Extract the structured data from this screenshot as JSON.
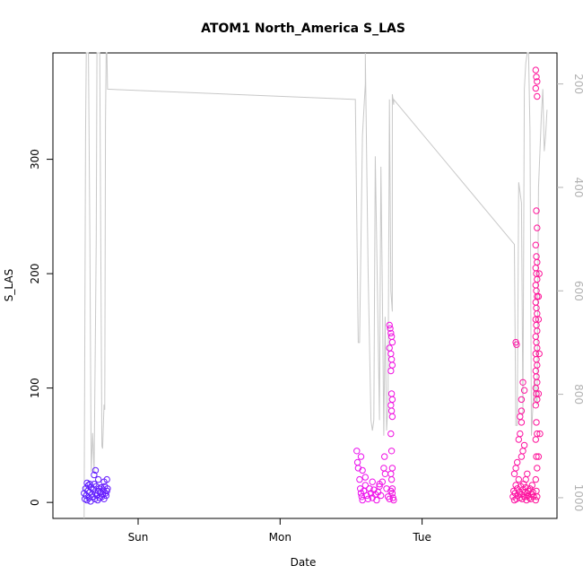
{
  "chart_data": {
    "type": "scatter",
    "title": "ATOM1 North_America S_LAS",
    "xlabel": "Date",
    "ylabel": "S_LAS",
    "x_unit": "days",
    "x_ticks": [
      {
        "label": "Sun",
        "value": 1.0
      },
      {
        "label": "Mon",
        "value": 2.0
      },
      {
        "label": "Tue",
        "value": 3.0
      }
    ],
    "xlim": [
      0.4,
      3.95
    ],
    "ylim": [
      -14,
      393
    ],
    "y_ticks": [
      0,
      100,
      200,
      300
    ],
    "y2_ticks": [
      200,
      400,
      600,
      800,
      1000
    ],
    "y2_range_top_to_bottom": [
      140,
      1040
    ],
    "grid": false,
    "legend": "none",
    "point_colors": {
      "start": "#5b1eff",
      "mid": "#ee11ee",
      "end": "#ff1493"
    },
    "line_color": "#c8c8c8",
    "line_series_right_axis": [
      [
        0.62,
        1040
      ],
      [
        0.63,
        300
      ],
      [
        0.635,
        140
      ],
      [
        0.65,
        140
      ],
      [
        0.66,
        500
      ],
      [
        0.67,
        950
      ],
      [
        0.68,
        875
      ],
      [
        0.69,
        950
      ],
      [
        0.7,
        660
      ],
      [
        0.705,
        500
      ],
      [
        0.71,
        140
      ],
      [
        0.73,
        140
      ],
      [
        0.745,
        900
      ],
      [
        0.75,
        905
      ],
      [
        0.76,
        820
      ],
      [
        0.765,
        830
      ],
      [
        0.77,
        275
      ],
      [
        0.775,
        140
      ],
      [
        0.78,
        140
      ],
      [
        0.785,
        210
      ],
      [
        2.53,
        230
      ],
      [
        2.55,
        700
      ],
      [
        2.56,
        700
      ],
      [
        2.58,
        300
      ],
      [
        2.6,
        200
      ],
      [
        2.6,
        140
      ],
      [
        2.62,
        560
      ],
      [
        2.64,
        850
      ],
      [
        2.65,
        870
      ],
      [
        2.66,
        850
      ],
      [
        2.67,
        340
      ],
      [
        2.68,
        500
      ],
      [
        2.7,
        850
      ],
      [
        2.7,
        820
      ],
      [
        2.71,
        360
      ],
      [
        2.72,
        600
      ],
      [
        2.73,
        880
      ],
      [
        2.74,
        650
      ],
      [
        2.75,
        870
      ],
      [
        2.76,
        820
      ],
      [
        2.77,
        230
      ],
      [
        2.78,
        600
      ],
      [
        2.79,
        640
      ],
      [
        2.79,
        220
      ],
      [
        2.8,
        240
      ],
      [
        2.8,
        230
      ],
      [
        3.65,
        510
      ],
      [
        3.66,
        860
      ],
      [
        3.67,
        860
      ],
      [
        3.68,
        390
      ],
      [
        3.7,
        430
      ],
      [
        3.71,
        840
      ],
      [
        3.72,
        210
      ],
      [
        3.73,
        160
      ],
      [
        3.74,
        140
      ],
      [
        3.75,
        140
      ],
      [
        3.76,
        290
      ],
      [
        3.77,
        880
      ],
      [
        3.79,
        770
      ],
      [
        3.8,
        800
      ],
      [
        3.81,
        820
      ],
      [
        3.82,
        400
      ],
      [
        3.83,
        330
      ],
      [
        3.84,
        260
      ],
      [
        3.85,
        210
      ],
      [
        3.86,
        330
      ],
      [
        3.87,
        300
      ],
      [
        3.88,
        250
      ]
    ],
    "points": [
      [
        0.62,
        8
      ],
      [
        0.625,
        3
      ],
      [
        0.63,
        12
      ],
      [
        0.635,
        6
      ],
      [
        0.64,
        2
      ],
      [
        0.645,
        10
      ],
      [
        0.65,
        15
      ],
      [
        0.655,
        4
      ],
      [
        0.66,
        9
      ],
      [
        0.665,
        1
      ],
      [
        0.67,
        13
      ],
      [
        0.675,
        7
      ],
      [
        0.68,
        5
      ],
      [
        0.685,
        11
      ],
      [
        0.69,
        16
      ],
      [
        0.695,
        3
      ],
      [
        0.7,
        8
      ],
      [
        0.705,
        14
      ],
      [
        0.71,
        6
      ],
      [
        0.715,
        2
      ],
      [
        0.72,
        10
      ],
      [
        0.725,
        12
      ],
      [
        0.73,
        4
      ],
      [
        0.735,
        9
      ],
      [
        0.74,
        13
      ],
      [
        0.745,
        5
      ],
      [
        0.75,
        7
      ],
      [
        0.755,
        11
      ],
      [
        0.76,
        3
      ],
      [
        0.765,
        14
      ],
      [
        0.77,
        8
      ],
      [
        0.775,
        6
      ],
      [
        0.78,
        10
      ],
      [
        0.785,
        12
      ],
      [
        0.69,
        24
      ],
      [
        0.7,
        28
      ],
      [
        0.72,
        20
      ],
      [
        0.76,
        18
      ],
      [
        0.78,
        20
      ],
      [
        0.64,
        17
      ],
      [
        0.66,
        16
      ],
      [
        2.54,
        45
      ],
      [
        2.545,
        35
      ],
      [
        2.55,
        30
      ],
      [
        2.56,
        20
      ],
      [
        2.565,
        12
      ],
      [
        2.57,
        8
      ],
      [
        2.575,
        5
      ],
      [
        2.58,
        2
      ],
      [
        2.59,
        10
      ],
      [
        2.6,
        15
      ],
      [
        2.61,
        6
      ],
      [
        2.62,
        3
      ],
      [
        2.63,
        12
      ],
      [
        2.64,
        8
      ],
      [
        2.65,
        4
      ],
      [
        2.66,
        11
      ],
      [
        2.67,
        7
      ],
      [
        2.68,
        2
      ],
      [
        2.69,
        9
      ],
      [
        2.7,
        14
      ],
      [
        2.71,
        6
      ],
      [
        2.72,
        18
      ],
      [
        2.73,
        30
      ],
      [
        2.735,
        40
      ],
      [
        2.74,
        25
      ],
      [
        2.75,
        12
      ],
      [
        2.76,
        5
      ],
      [
        2.77,
        3
      ],
      [
        2.78,
        10
      ],
      [
        2.785,
        20
      ],
      [
        2.79,
        8
      ],
      [
        2.795,
        4
      ],
      [
        2.8,
        2
      ],
      [
        2.6,
        22
      ],
      [
        2.65,
        18
      ],
      [
        2.7,
        16
      ],
      [
        2.58,
        28
      ],
      [
        2.57,
        40
      ],
      [
        2.77,
        155
      ],
      [
        2.775,
        152
      ],
      [
        2.78,
        148
      ],
      [
        2.785,
        145
      ],
      [
        2.79,
        140
      ],
      [
        2.77,
        135
      ],
      [
        2.78,
        130
      ],
      [
        2.785,
        125
      ],
      [
        2.79,
        120
      ],
      [
        2.78,
        115
      ],
      [
        2.785,
        95
      ],
      [
        2.79,
        90
      ],
      [
        2.78,
        85
      ],
      [
        2.785,
        80
      ],
      [
        2.79,
        75
      ],
      [
        2.78,
        60
      ],
      [
        2.785,
        45
      ],
      [
        2.79,
        30
      ],
      [
        2.78,
        25
      ],
      [
        2.79,
        12
      ],
      [
        3.64,
        5
      ],
      [
        3.645,
        10
      ],
      [
        3.65,
        2
      ],
      [
        3.655,
        8
      ],
      [
        3.66,
        15
      ],
      [
        3.665,
        3
      ],
      [
        3.67,
        12
      ],
      [
        3.675,
        6
      ],
      [
        3.68,
        20
      ],
      [
        3.685,
        9
      ],
      [
        3.69,
        4
      ],
      [
        3.695,
        14
      ],
      [
        3.7,
        7
      ],
      [
        3.705,
        3
      ],
      [
        3.71,
        11
      ],
      [
        3.715,
        16
      ],
      [
        3.72,
        5
      ],
      [
        3.725,
        9
      ],
      [
        3.73,
        13
      ],
      [
        3.735,
        2
      ],
      [
        3.74,
        8
      ],
      [
        3.745,
        6
      ],
      [
        3.75,
        10
      ],
      [
        3.755,
        4
      ],
      [
        3.76,
        12
      ],
      [
        3.765,
        3
      ],
      [
        3.77,
        7
      ],
      [
        3.775,
        15
      ],
      [
        3.78,
        9
      ],
      [
        3.785,
        5
      ],
      [
        3.65,
        25
      ],
      [
        3.66,
        30
      ],
      [
        3.67,
        35
      ],
      [
        3.68,
        55
      ],
      [
        3.69,
        60
      ],
      [
        3.7,
        70
      ],
      [
        3.7,
        90
      ],
      [
        3.71,
        105
      ],
      [
        3.72,
        98
      ],
      [
        3.66,
        140
      ],
      [
        3.665,
        138
      ],
      [
        3.7,
        40
      ],
      [
        3.71,
        45
      ],
      [
        3.72,
        50
      ],
      [
        3.73,
        20
      ],
      [
        3.74,
        25
      ],
      [
        3.69,
        75
      ],
      [
        3.7,
        80
      ],
      [
        3.8,
        378
      ],
      [
        3.805,
        372
      ],
      [
        3.81,
        368
      ],
      [
        3.8,
        362
      ],
      [
        3.81,
        355
      ],
      [
        3.805,
        255
      ],
      [
        3.81,
        240
      ],
      [
        3.8,
        225
      ],
      [
        3.805,
        215
      ],
      [
        3.81,
        210
      ],
      [
        3.8,
        205
      ],
      [
        3.805,
        200
      ],
      [
        3.81,
        195
      ],
      [
        3.8,
        190
      ],
      [
        3.805,
        185
      ],
      [
        3.81,
        180
      ],
      [
        3.8,
        175
      ],
      [
        3.805,
        170
      ],
      [
        3.81,
        165
      ],
      [
        3.8,
        160
      ],
      [
        3.805,
        155
      ],
      [
        3.81,
        150
      ],
      [
        3.8,
        145
      ],
      [
        3.805,
        140
      ],
      [
        3.81,
        135
      ],
      [
        3.8,
        130
      ],
      [
        3.805,
        125
      ],
      [
        3.81,
        120
      ],
      [
        3.8,
        115
      ],
      [
        3.805,
        110
      ],
      [
        3.81,
        105
      ],
      [
        3.8,
        100
      ],
      [
        3.805,
        95
      ],
      [
        3.81,
        90
      ],
      [
        3.8,
        85
      ],
      [
        3.805,
        70
      ],
      [
        3.81,
        60
      ],
      [
        3.8,
        55
      ],
      [
        3.805,
        40
      ],
      [
        3.81,
        30
      ],
      [
        3.8,
        20
      ],
      [
        3.805,
        10
      ],
      [
        3.81,
        5
      ],
      [
        3.8,
        2
      ],
      [
        3.82,
        180
      ],
      [
        3.825,
        200
      ],
      [
        3.82,
        160
      ],
      [
        3.825,
        130
      ],
      [
        3.82,
        95
      ],
      [
        3.83,
        60
      ],
      [
        3.82,
        40
      ]
    ]
  }
}
